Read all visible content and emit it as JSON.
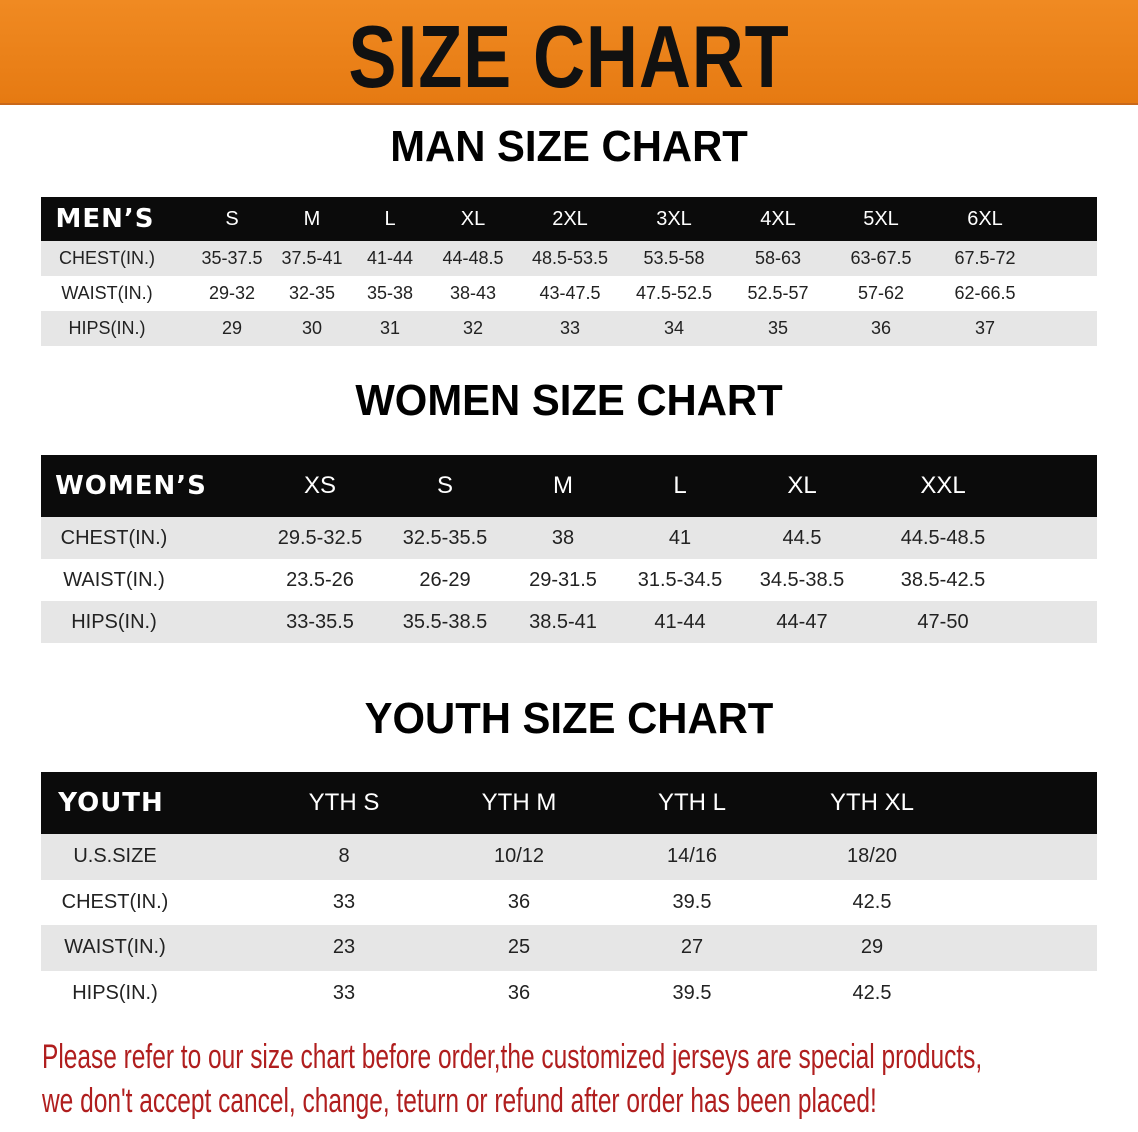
{
  "banner": {
    "title": "SIZE CHART",
    "color": "#ec8118"
  },
  "men": {
    "title": "MAN SIZE CHART",
    "headers": [
      "MEN’S",
      "S",
      "M",
      "L",
      "XL",
      "2XL",
      "3XL",
      "4XL",
      "5XL",
      "6XL"
    ],
    "rows": [
      [
        "CHEST(IN.)",
        "35-37.5",
        "37.5-41",
        "41-44",
        "44-48.5",
        "48.5-53.5",
        "53.5-58",
        "58-63",
        "63-67.5",
        "67.5-72"
      ],
      [
        "WAIST(IN.)",
        "29-32",
        "32-35",
        "35-38",
        "38-43",
        "43-47.5",
        "47.5-52.5",
        "52.5-57",
        "57-62",
        "62-66.5"
      ],
      [
        "HIPS(IN.)",
        "29",
        "30",
        "31",
        "32",
        "33",
        "34",
        "35",
        "36",
        "37"
      ]
    ]
  },
  "women": {
    "title": "WOMEN SIZE CHART",
    "headers": [
      "WOMEN’S",
      "XS",
      "S",
      "M",
      "L",
      "XL",
      "XXL"
    ],
    "rows": [
      [
        "CHEST(IN.)",
        "29.5-32.5",
        "32.5-35.5",
        "38",
        "41",
        "44.5",
        "44.5-48.5"
      ],
      [
        "WAIST(IN.)",
        "23.5-26",
        "26-29",
        "29-31.5",
        "31.5-34.5",
        "34.5-38.5",
        "38.5-42.5"
      ],
      [
        "HIPS(IN.)",
        "33-35.5",
        "35.5-38.5",
        "38.5-41",
        "41-44",
        "44-47",
        "47-50"
      ]
    ]
  },
  "youth": {
    "title": "YOUTH SIZE CHART",
    "headers": [
      "YOUTH",
      "YTH S",
      "YTH M",
      "YTH L",
      "YTH XL"
    ],
    "rows": [
      [
        "U.S.SIZE",
        "8",
        "10/12",
        "14/16",
        "18/20"
      ],
      [
        "CHEST(IN.)",
        "33",
        "36",
        "39.5",
        "42.5"
      ],
      [
        "WAIST(IN.)",
        "23",
        "25",
        "27",
        "29"
      ],
      [
        "HIPS(IN.)",
        "33",
        "36",
        "39.5",
        "42.5"
      ]
    ]
  },
  "notice": {
    "line1": "Please refer to our size chart before order,the customized jerseys are special products,",
    "line2": "we don't accept cancel, change, teturn or refund after order has been placed!",
    "color": "#b01e1e"
  }
}
